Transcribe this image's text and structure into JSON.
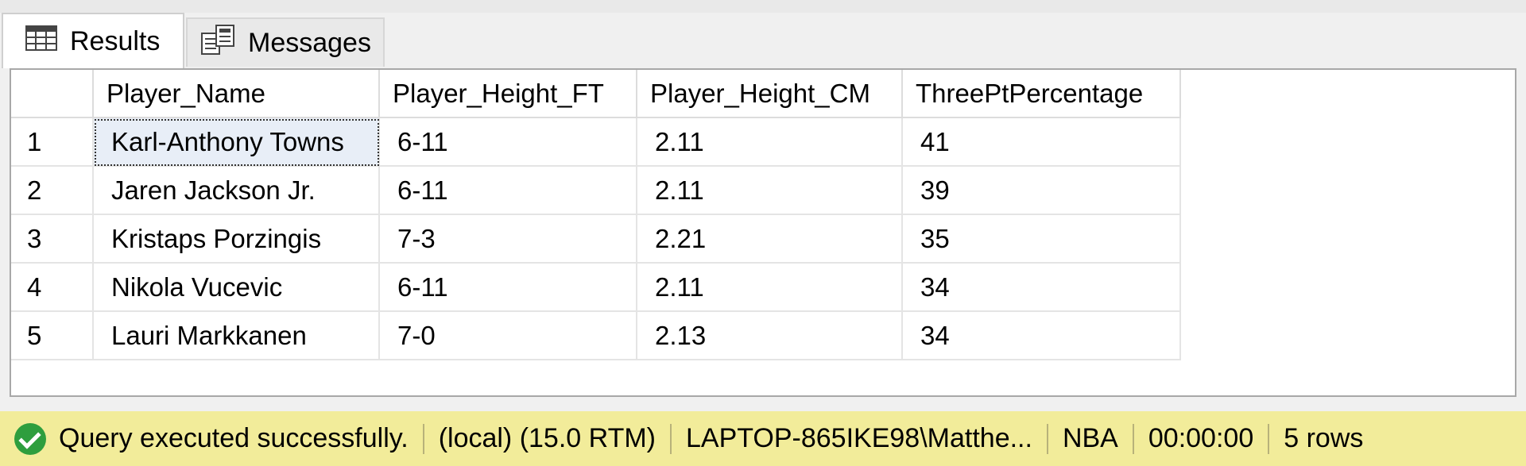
{
  "tabs": [
    {
      "label": "Results",
      "icon": "grid-icon",
      "active": true
    },
    {
      "label": "Messages",
      "icon": "messages-icon",
      "active": false
    }
  ],
  "grid": {
    "columns": [
      "",
      "Player_Name",
      "Player_Height_FT",
      "Player_Height_CM",
      "ThreePtPercentage"
    ],
    "rows": [
      [
        "1",
        "Karl-Anthony Towns",
        "6-11",
        "2.11",
        "41"
      ],
      [
        "2",
        "Jaren Jackson Jr.",
        "6-11",
        "2.11",
        "39"
      ],
      [
        "3",
        "Kristaps Porzingis",
        "7-3",
        "2.21",
        "35"
      ],
      [
        "4",
        "Nikola Vucevic",
        "6-11",
        "2.11",
        "34"
      ],
      [
        "5",
        "Lauri Markkanen",
        "7-0",
        "2.13",
        "34"
      ]
    ]
  },
  "status": {
    "message": "Query executed successfully.",
    "server": "(local) (15.0 RTM)",
    "user": "LAPTOP-865IKE98\\Matthe...",
    "database": "NBA",
    "elapsed": "00:00:00",
    "row_count": "5 rows",
    "bar_color": "#f2ec9a",
    "icon": "success-check-icon"
  }
}
